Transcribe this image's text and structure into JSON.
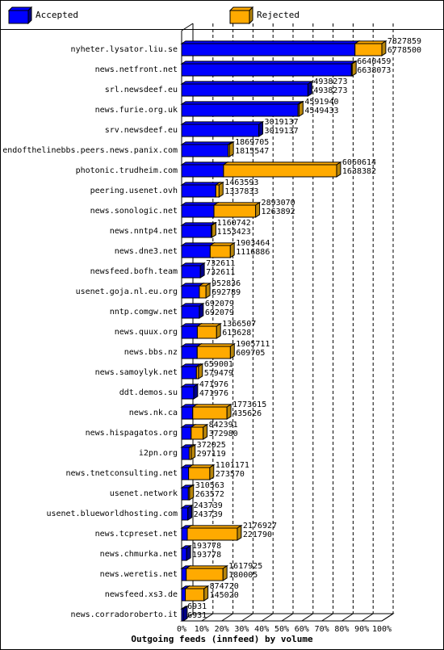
{
  "chart_data": {
    "type": "bar",
    "orientation": "horizontal",
    "stacked": true,
    "title": "Outgoing feeds (innfeed) by volume",
    "x_ticks": [
      "0%",
      "10%",
      "20%",
      "30%",
      "40%",
      "50%",
      "60%",
      "70%",
      "80%",
      "90%",
      "100%"
    ],
    "xlim": [
      0,
      7827859
    ],
    "legend": {
      "position": "top",
      "items": [
        {
          "label": "Accepted",
          "color": "#0000ff"
        },
        {
          "label": "Rejected",
          "color": "#ffaa00"
        }
      ]
    },
    "categories": [
      "nyheter.lysator.liu.se",
      "news.netfront.net",
      "srl.newsdeef.eu",
      "news.furie.org.uk",
      "srv.newsdeef.eu",
      "endofthelinebbs.peers.news.panix.com",
      "photonic.trudheim.com",
      "peering.usenet.ovh",
      "news.sonologic.net",
      "news.nntp4.net",
      "news.dne3.net",
      "newsfeed.bofh.team",
      "usenet.goja.nl.eu.org",
      "nntp.comgw.net",
      "news.quux.org",
      "news.bbs.nz",
      "news.samoylyk.net",
      "ddt.demos.su",
      "news.nk.ca",
      "news.hispagatos.org",
      "i2pn.org",
      "news.tnetconsulting.net",
      "usenet.network",
      "usenet.blueworldhosting.com",
      "news.tcpreset.net",
      "news.chmurka.net",
      "news.weretis.net",
      "newsfeed.xs3.de",
      "news.corradoroberto.it"
    ],
    "offered": [
      7827859,
      6640459,
      4938273,
      4591940,
      3019137,
      1869705,
      6060614,
      1463593,
      2893070,
      1160742,
      1903464,
      732611,
      952836,
      692079,
      1366507,
      1905711,
      659001,
      471976,
      1773615,
      842391,
      372025,
      1101171,
      310563,
      243739,
      2176927,
      193778,
      1617925,
      874720,
      6931
    ],
    "accepted": [
      6778500,
      6638073,
      4938273,
      4549433,
      3019137,
      1815547,
      1638382,
      1337833,
      1263892,
      1153423,
      1116886,
      732611,
      692789,
      692079,
      613628,
      609705,
      579479,
      471976,
      435626,
      372980,
      297119,
      273570,
      263572,
      243739,
      221790,
      193778,
      180005,
      145020,
      6931
    ],
    "series": [
      {
        "name": "Accepted",
        "values": [
          6778500,
          6638073,
          4938273,
          4549433,
          3019137,
          1815547,
          1638382,
          1337833,
          1263892,
          1153423,
          1116886,
          732611,
          692789,
          692079,
          613628,
          609705,
          579479,
          471976,
          435626,
          372980,
          297119,
          273570,
          263572,
          243739,
          221790,
          193778,
          180005,
          145020,
          6931
        ]
      },
      {
        "name": "Rejected",
        "values": [
          1049359,
          2386,
          0,
          42507,
          0,
          54158,
          4422232,
          125760,
          1629178,
          7319,
          786578,
          0,
          260047,
          0,
          752879,
          1296006,
          79522,
          0,
          1337989,
          469411,
          74906,
          827601,
          46991,
          0,
          1955137,
          0,
          1437920,
          729700,
          0
        ]
      }
    ],
    "bar_labels_top": [
      "7827859",
      "6640459",
      "4938273",
      "4591940",
      "3019137",
      "1869705",
      "6060614",
      "1463593",
      "2893070",
      "1160742",
      "1903464",
      "732611",
      "952836",
      "692079",
      "1366507",
      "1905711",
      "659001",
      "471976",
      "1773615",
      "842391",
      "372025",
      "1101171",
      "310563",
      "243739",
      "2176927",
      "193778",
      "1617925",
      "874720",
      "6931"
    ],
    "bar_labels_bottom": [
      "6778500",
      "6638073",
      "4938273",
      "4549433",
      "3019137",
      "1815547",
      "1638382",
      "1337833",
      "1263892",
      "1153423",
      "1116886",
      "732611",
      "692789",
      "692079",
      "613628",
      "609705",
      "579479",
      "471976",
      "435626",
      "372980",
      "297119",
      "273570",
      "263572",
      "243739",
      "221790",
      "193778",
      "180005",
      "145020",
      "6931"
    ]
  }
}
